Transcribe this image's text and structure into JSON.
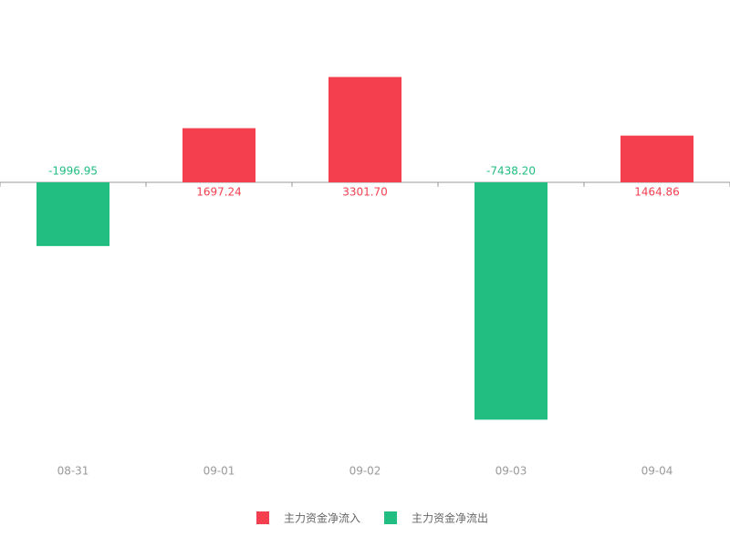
{
  "chart_data": {
    "type": "bar",
    "categories": [
      "08-31",
      "09-01",
      "09-02",
      "09-03",
      "09-04"
    ],
    "series": [
      {
        "name": "主力资金净流入",
        "color": "#f43f4f",
        "values": [
          null,
          1697.24,
          3301.7,
          null,
          1464.86
        ],
        "value_labels": [
          null,
          "1697.24",
          "3301.70",
          null,
          "1464.86"
        ]
      },
      {
        "name": "主力资金净流出",
        "color": "#22bd80",
        "values": [
          -1996.95,
          null,
          null,
          -7438.2,
          null
        ],
        "value_labels": [
          "-1996.95",
          null,
          null,
          "-7438.20",
          null
        ]
      }
    ],
    "ylim": [
      -8000,
      4000
    ],
    "legend": "bottom"
  }
}
